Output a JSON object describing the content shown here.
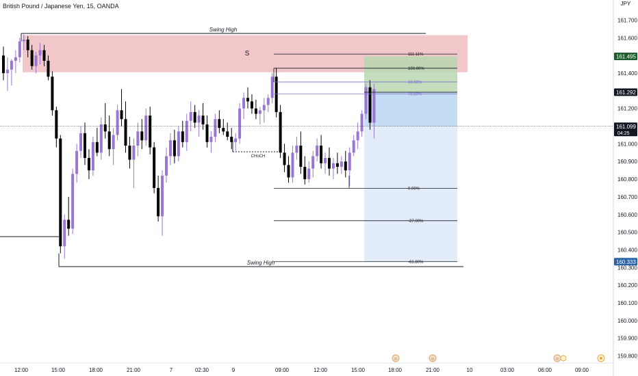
{
  "header": {
    "symbol_title": "British Pound / Japanese Yen, 15, OANDA",
    "currency_top": "JPY"
  },
  "colors": {
    "up": "#9a75d2",
    "down": "#000000",
    "supply_zone": "#f1c7c9",
    "target_green": "#b9d7b1",
    "target_blue": "#c5dcf5",
    "target_blue_light": "#e2edf9",
    "fib_line": "#7c6fc9",
    "last_price_bg": "#131722",
    "level_green": "#1e5e2b",
    "level_dark": "#131722",
    "level_blue": "#2962a8"
  },
  "chart_data": {
    "type": "candlestick",
    "title": "British Pound / Japanese Yen, 15, OANDA",
    "y_ticks": [
      161.7,
      161.6,
      161.5,
      161.4,
      161.3,
      161.2,
      161.1,
      161.0,
      160.9,
      160.8,
      160.7,
      160.6,
      160.5,
      160.4,
      160.3,
      160.2,
      160.1,
      160.0,
      159.9,
      159.8
    ],
    "y_tick_labels": [
      "161.700",
      "161.600",
      "161.500",
      "161.400",
      "161.300",
      "161.200",
      "161.100",
      "161.000",
      "160.900",
      "160.800",
      "160.700",
      "160.600",
      "160.500",
      "160.400",
      "160.300",
      "160.200",
      "160.100",
      "160.000",
      "159.900",
      "159.800"
    ],
    "ylim": [
      159.78,
      161.76
    ],
    "x_tick_labels": [
      "12:00",
      "15:00",
      "18:00",
      "21:00",
      "7",
      "02:30",
      "9",
      "09:00",
      "12:00",
      "15:00",
      "18:00",
      "21:00",
      "10",
      "03:00",
      "06:00",
      "09:00"
    ],
    "price_labels": [
      {
        "value": 161.495,
        "label": "161.495",
        "style": "green"
      },
      {
        "value": 161.292,
        "label": "161.292",
        "style": "dark"
      },
      {
        "value": 161.099,
        "label": "161.099",
        "sub": "04:25",
        "style": "dark"
      },
      {
        "value": 160.333,
        "label": "160.333",
        "style": "blue"
      }
    ],
    "annotations": {
      "swing_high_top": {
        "text": "Swing High",
        "value": 161.625
      },
      "swing_high_bottom": {
        "text": "Swing High",
        "value": 160.305
      },
      "supply_zone": {
        "text": "S",
        "top": 161.615,
        "bottom": 161.405
      },
      "choch": {
        "text": "CHoCH",
        "value": 160.955
      },
      "left_level": {
        "value": 160.475
      }
    },
    "fib_levels": [
      {
        "label": "111.11%",
        "value": 161.508
      },
      {
        "label": "100.00%",
        "value": 161.428
      },
      {
        "label": "88.60%",
        "value": 161.35
      },
      {
        "label": "78.60%",
        "value": 161.283
      },
      {
        "label": "0.00%",
        "value": 160.748
      },
      {
        "label": "-27.00%",
        "value": 160.565
      },
      {
        "label": "-61.80%",
        "value": 160.333
      }
    ],
    "position": {
      "entry": 161.292,
      "target": 161.495,
      "stop": 160.333
    },
    "candles": [
      [
        161.5,
        161.55,
        161.36,
        161.4
      ],
      [
        161.4,
        161.49,
        161.3,
        161.42
      ],
      [
        161.42,
        161.48,
        161.33,
        161.47
      ],
      [
        161.47,
        161.53,
        161.4,
        161.49
      ],
      [
        161.49,
        161.6,
        161.46,
        161.58
      ],
      [
        161.58,
        161.62,
        161.53,
        161.59
      ],
      [
        161.59,
        161.61,
        161.49,
        161.53
      ],
      [
        161.53,
        161.56,
        161.42,
        161.44
      ],
      [
        161.44,
        161.52,
        161.4,
        161.5
      ],
      [
        161.5,
        161.57,
        161.45,
        161.53
      ],
      [
        161.53,
        161.56,
        161.44,
        161.47
      ],
      [
        161.47,
        161.5,
        161.36,
        161.38
      ],
      [
        161.38,
        161.41,
        161.16,
        161.19
      ],
      [
        161.19,
        161.21,
        160.98,
        161.03
      ],
      [
        161.03,
        161.05,
        160.38,
        160.42
      ],
      [
        160.42,
        160.6,
        160.35,
        160.57
      ],
      [
        160.57,
        160.7,
        160.48,
        160.52
      ],
      [
        160.52,
        160.86,
        160.49,
        160.83
      ],
      [
        160.83,
        161.0,
        160.78,
        160.96
      ],
      [
        160.96,
        161.1,
        160.92,
        161.06
      ],
      [
        161.06,
        161.12,
        160.88,
        160.92
      ],
      [
        160.92,
        160.97,
        160.8,
        160.85
      ],
      [
        160.85,
        161.04,
        160.82,
        161.01
      ],
      [
        161.01,
        161.09,
        160.93,
        160.95
      ],
      [
        160.95,
        161.15,
        160.91,
        161.11
      ],
      [
        161.11,
        161.23,
        161.03,
        161.07
      ],
      [
        161.07,
        161.16,
        160.93,
        160.97
      ],
      [
        160.97,
        161.09,
        160.88,
        161.05
      ],
      [
        161.05,
        161.22,
        161.02,
        161.19
      ],
      [
        161.19,
        161.31,
        161.1,
        161.14
      ],
      [
        161.14,
        161.24,
        160.95,
        160.99
      ],
      [
        160.99,
        161.04,
        160.86,
        160.91
      ],
      [
        160.91,
        161.03,
        160.75,
        160.99
      ],
      [
        160.99,
        161.12,
        160.93,
        161.07
      ],
      [
        161.07,
        161.14,
        160.97,
        161.02
      ],
      [
        161.02,
        161.2,
        160.99,
        161.16
      ],
      [
        161.16,
        161.21,
        160.94,
        160.98
      ],
      [
        160.98,
        161.01,
        160.72,
        160.75
      ],
      [
        160.75,
        160.82,
        160.56,
        160.59
      ],
      [
        160.59,
        160.85,
        160.48,
        160.82
      ],
      [
        160.82,
        160.98,
        160.78,
        160.93
      ],
      [
        160.93,
        161.06,
        160.88,
        161.02
      ],
      [
        161.02,
        161.08,
        160.89,
        160.93
      ],
      [
        160.93,
        161.1,
        160.9,
        161.07
      ],
      [
        161.07,
        161.13,
        160.98,
        161.01
      ],
      [
        161.01,
        161.17,
        160.96,
        161.13
      ],
      [
        161.13,
        161.24,
        161.07,
        161.18
      ],
      [
        161.18,
        161.22,
        161.09,
        161.12
      ],
      [
        161.12,
        161.19,
        161.04,
        161.16
      ],
      [
        161.16,
        161.23,
        161.08,
        161.11
      ],
      [
        161.11,
        161.16,
        160.98,
        161.01
      ],
      [
        161.01,
        161.07,
        160.95,
        161.04
      ],
      [
        161.04,
        161.17,
        161.01,
        161.14
      ],
      [
        161.14,
        161.19,
        161.06,
        161.09
      ],
      [
        161.09,
        161.14,
        161.05,
        161.07
      ],
      [
        161.07,
        161.12,
        161.02,
        161.04
      ],
      [
        161.04,
        161.09,
        160.97,
        161.01
      ],
      [
        161.01,
        161.06,
        160.96,
        161.03
      ],
      [
        161.03,
        161.23,
        161.0,
        161.2
      ],
      [
        161.2,
        161.29,
        161.14,
        161.26
      ],
      [
        161.26,
        161.32,
        161.2,
        161.24
      ],
      [
        161.24,
        161.28,
        161.17,
        161.2
      ],
      [
        161.2,
        161.25,
        161.14,
        161.17
      ],
      [
        161.17,
        161.21,
        161.11,
        161.19
      ],
      [
        161.19,
        161.26,
        161.12,
        161.22
      ],
      [
        161.22,
        161.28,
        161.18,
        161.26
      ],
      [
        161.26,
        161.4,
        161.23,
        161.38
      ],
      [
        161.38,
        161.43,
        161.15,
        161.18
      ],
      [
        161.18,
        161.22,
        160.92,
        160.95
      ],
      [
        160.95,
        161.0,
        160.84,
        160.88
      ],
      [
        160.88,
        160.93,
        160.78,
        160.81
      ],
      [
        160.81,
        160.99,
        160.78,
        160.95
      ],
      [
        160.95,
        161.04,
        160.91,
        160.99
      ],
      [
        160.99,
        161.07,
        160.83,
        160.87
      ],
      [
        160.87,
        160.93,
        160.77,
        160.8
      ],
      [
        160.8,
        160.9,
        160.78,
        160.86
      ],
      [
        160.86,
        160.96,
        160.81,
        160.93
      ],
      [
        160.93,
        161.03,
        160.9,
        160.99
      ],
      [
        160.99,
        161.05,
        160.86,
        160.89
      ],
      [
        160.89,
        160.95,
        160.83,
        160.92
      ],
      [
        160.92,
        160.98,
        160.82,
        160.86
      ],
      [
        160.86,
        160.92,
        160.8,
        160.89
      ],
      [
        160.89,
        160.95,
        160.83,
        160.87
      ],
      [
        160.87,
        160.93,
        160.83,
        160.9
      ],
      [
        160.9,
        160.96,
        160.81,
        160.85
      ],
      [
        160.85,
        160.98,
        160.76,
        160.95
      ],
      [
        160.95,
        161.05,
        160.93,
        161.02
      ],
      [
        161.02,
        161.12,
        160.97,
        161.07
      ],
      [
        161.07,
        161.19,
        161.04,
        161.17
      ],
      [
        161.17,
        161.34,
        161.14,
        161.32
      ],
      [
        161.32,
        161.36,
        161.08,
        161.12
      ],
      [
        161.12,
        161.34,
        161.03,
        161.31
      ]
    ]
  }
}
